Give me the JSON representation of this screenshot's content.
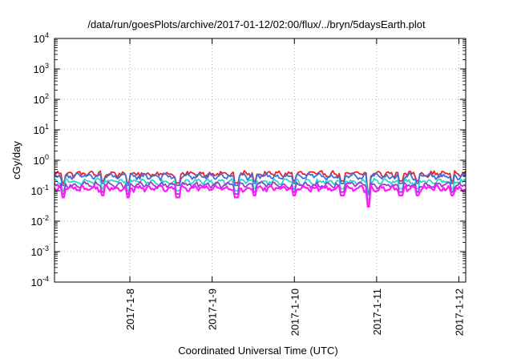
{
  "chart_data": {
    "type": "line",
    "title": "/data/run/goesPlots/archive/2017-01-12/02:00/flux/../bryn/5daysEarth.plot",
    "xlabel": "Coordinated Universal Time (UTC)",
    "ylabel": "cGy/day",
    "yscale": "log",
    "ylim": [
      0.0001,
      10000
    ],
    "xlim": [
      "2017-01-07 02:00",
      "2017-01-12 02:00"
    ],
    "grid": true,
    "y_ticks": [
      {
        "base": "10",
        "exp": "-4"
      },
      {
        "base": "10",
        "exp": "-3"
      },
      {
        "base": "10",
        "exp": "-2"
      },
      {
        "base": "10",
        "exp": "-1"
      },
      {
        "base": "10",
        "exp": "0"
      },
      {
        "base": "10",
        "exp": "1"
      },
      {
        "base": "10",
        "exp": "2"
      },
      {
        "base": "10",
        "exp": "3"
      },
      {
        "base": "10",
        "exp": "4"
      }
    ],
    "x_ticks": [
      {
        "label": "2017-1-8",
        "date": "2017-01-08 00:00"
      },
      {
        "label": "2017-1-9",
        "date": "2017-01-09 00:00"
      },
      {
        "label": "2017-1-10",
        "date": "2017-01-10 00:00"
      },
      {
        "label": "2017-1-11",
        "date": "2017-01-11 00:00"
      },
      {
        "label": "2017-1-12",
        "date": "2017-01-12 00:00"
      }
    ],
    "series": [
      {
        "color": "#e8232a",
        "level": 0.36
      },
      {
        "color": "#3a6fe0",
        "level": 0.3
      },
      {
        "color": "#2fd6c4",
        "level": 0.2
      },
      {
        "color": "#9a3cd0",
        "level": 0.155
      },
      {
        "color": "#ff19ff",
        "level": 0.12
      }
    ],
    "dips": [
      {
        "date": "2017-01-07 04:30",
        "value": 0.06
      },
      {
        "date": "2017-01-07 16:00",
        "value": 0.07
      },
      {
        "date": "2017-01-07 23:30",
        "value": 0.06
      },
      {
        "date": "2017-01-08 14:00",
        "value": 0.06
      },
      {
        "date": "2017-01-09 07:00",
        "value": 0.06
      },
      {
        "date": "2017-01-09 12:30",
        "value": 0.07
      },
      {
        "date": "2017-01-09 23:50",
        "value": 0.07
      },
      {
        "date": "2017-01-10 14:00",
        "value": 0.07
      },
      {
        "date": "2017-01-10 21:30",
        "value": 0.03
      },
      {
        "date": "2017-01-11 07:00",
        "value": 0.07
      },
      {
        "date": "2017-01-11 12:00",
        "value": 0.07
      },
      {
        "date": "2017-01-11 22:00",
        "value": 0.07
      }
    ]
  }
}
